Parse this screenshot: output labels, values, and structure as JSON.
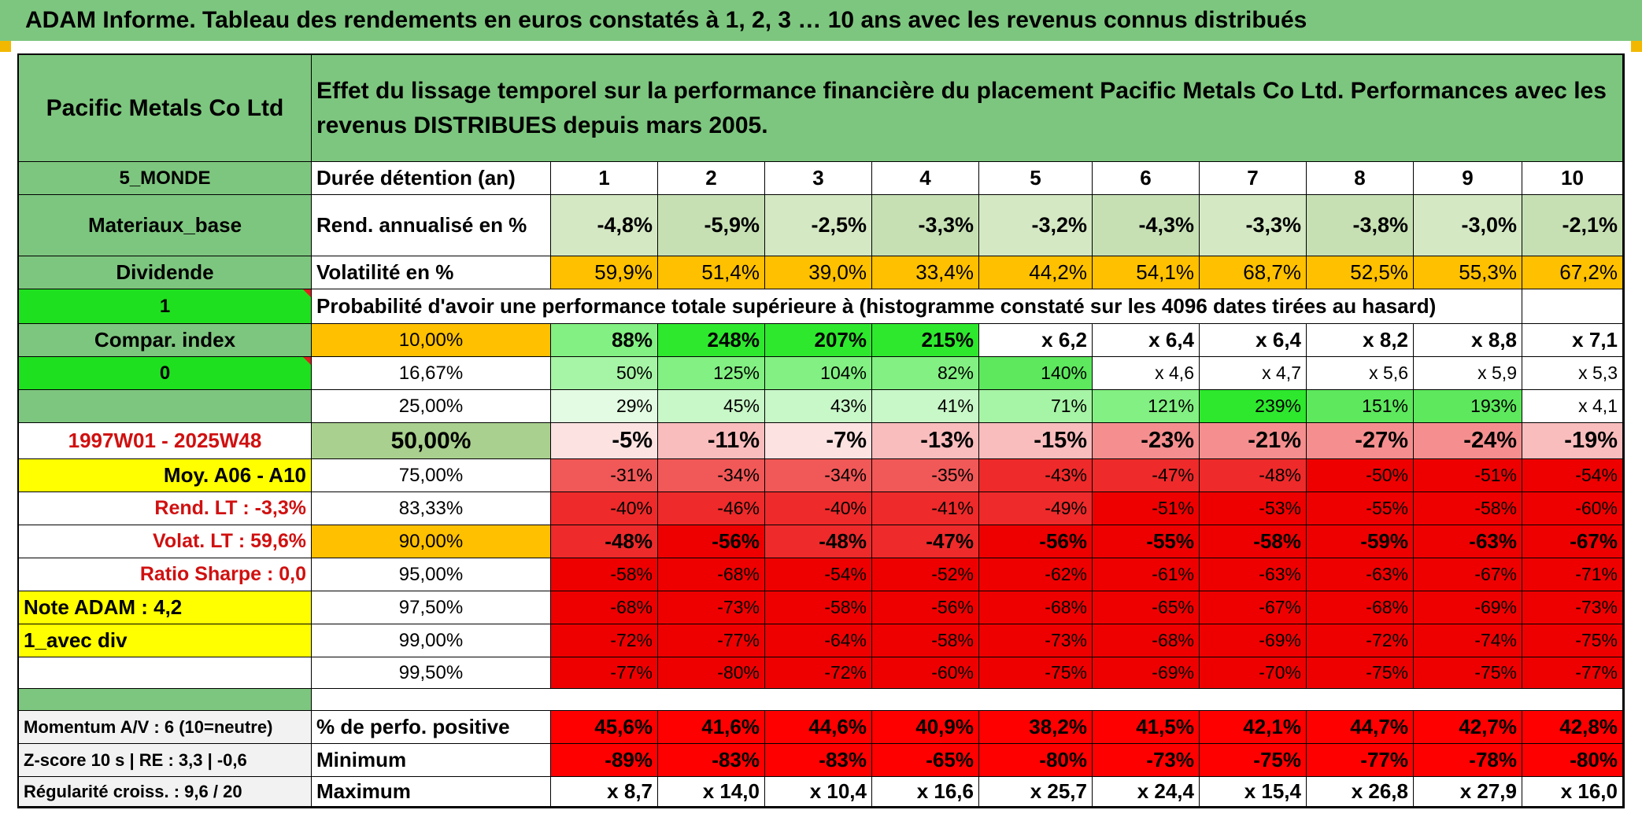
{
  "title": "ADAM Informe. Tableau des rendements en euros constatés à 1, 2, 3 … 10 ans avec les revenus connus distribués",
  "header": {
    "company": "Pacific Metals Co Ltd",
    "description": "Effet du lissage temporel sur la performance financière du placement Pacific Metals Co Ltd. Performances avec les revenus DISTRIBUES depuis mars 2005."
  },
  "left_panel": [
    "5_MONDE",
    "Materiaux_base",
    "Dividende",
    "1",
    "Compar. index",
    "0",
    "",
    "1997W01 - 2025W48",
    "Moy. A06 - A10",
    "Rend. LT :   -3,3%",
    "Volat. LT :   59,6%",
    "Ratio Sharpe :    0,0",
    "Note ADAM : 4,2",
    "1_avec div",
    ""
  ],
  "durations": {
    "label": "Durée détention (an)",
    "values": [
      "1",
      "2",
      "3",
      "4",
      "5",
      "6",
      "7",
      "8",
      "9",
      "10"
    ]
  },
  "rend": {
    "label": "Rend. annualisé en %",
    "values": [
      "-4,8%",
      "-5,9%",
      "-2,5%",
      "-3,3%",
      "-3,2%",
      "-4,3%",
      "-3,3%",
      "-3,8%",
      "-3,0%",
      "-2,1%"
    ]
  },
  "vol": {
    "label": "Volatilité en %",
    "values": [
      "59,9%",
      "51,4%",
      "39,0%",
      "33,4%",
      "44,2%",
      "54,1%",
      "68,7%",
      "52,5%",
      "55,3%",
      "67,2%"
    ]
  },
  "prob_header": "Probabilité d'avoir une performance totale supérieure à (histogramme constaté sur les 4096 dates tirées au hasard)",
  "percentiles": [
    {
      "label": "10,00%",
      "values": [
        "88%",
        "248%",
        "207%",
        "215%",
        "x 6,2",
        "x 6,4",
        "x 6,4",
        "x 8,2",
        "x 8,8",
        "x 7,1"
      ]
    },
    {
      "label": "16,67%",
      "values": [
        "50%",
        "125%",
        "104%",
        "82%",
        "140%",
        "x 4,6",
        "x 4,7",
        "x 5,6",
        "x 5,9",
        "x 5,3"
      ]
    },
    {
      "label": "25,00%",
      "values": [
        "29%",
        "45%",
        "43%",
        "41%",
        "71%",
        "121%",
        "239%",
        "151%",
        "193%",
        "x 4,1"
      ]
    },
    {
      "label": "50,00%",
      "values": [
        "-5%",
        "-11%",
        "-7%",
        "-13%",
        "-15%",
        "-23%",
        "-21%",
        "-27%",
        "-24%",
        "-19%"
      ]
    },
    {
      "label": "75,00%",
      "values": [
        "-31%",
        "-34%",
        "-34%",
        "-35%",
        "-43%",
        "-47%",
        "-48%",
        "-50%",
        "-51%",
        "-54%"
      ]
    },
    {
      "label": "83,33%",
      "values": [
        "-40%",
        "-46%",
        "-40%",
        "-41%",
        "-49%",
        "-51%",
        "-53%",
        "-55%",
        "-58%",
        "-60%"
      ]
    },
    {
      "label": "90,00%",
      "values": [
        "-48%",
        "-56%",
        "-48%",
        "-47%",
        "-56%",
        "-55%",
        "-58%",
        "-59%",
        "-63%",
        "-67%"
      ]
    },
    {
      "label": "95,00%",
      "values": [
        "-58%",
        "-68%",
        "-54%",
        "-52%",
        "-62%",
        "-61%",
        "-63%",
        "-63%",
        "-67%",
        "-71%"
      ]
    },
    {
      "label": "97,50%",
      "values": [
        "-68%",
        "-73%",
        "-58%",
        "-56%",
        "-68%",
        "-65%",
        "-67%",
        "-68%",
        "-69%",
        "-73%"
      ]
    },
    {
      "label": "99,00%",
      "values": [
        "-72%",
        "-77%",
        "-64%",
        "-58%",
        "-73%",
        "-68%",
        "-69%",
        "-72%",
        "-74%",
        "-75%"
      ]
    },
    {
      "label": "99,50%",
      "values": [
        "-77%",
        "-80%",
        "-72%",
        "-60%",
        "-75%",
        "-69%",
        "-70%",
        "-75%",
        "-75%",
        "-77%"
      ]
    }
  ],
  "bottom": [
    {
      "side": "Momentum A/V : 6 (10=neutre)",
      "label": "% de perfo. positive",
      "values": [
        "45,6%",
        "41,6%",
        "44,6%",
        "40,9%",
        "38,2%",
        "41,5%",
        "42,1%",
        "44,7%",
        "42,7%",
        "42,8%"
      ]
    },
    {
      "side": "Z-score 10 s | RE : 3,3 | -0,6",
      "label": "Minimum",
      "values": [
        "-89%",
        "-83%",
        "-83%",
        "-65%",
        "-80%",
        "-73%",
        "-75%",
        "-77%",
        "-78%",
        "-80%"
      ]
    },
    {
      "side": "Régularité croiss. : 9,6 / 20",
      "label": "Maximum",
      "values": [
        "x 8,7",
        "x 14,0",
        "x 10,4",
        "x 16,6",
        "x 25,7",
        "x 24,4",
        "x 15,4",
        "x 26,8",
        "x 27,9",
        "x 16,0"
      ]
    }
  ],
  "colors": {
    "header_green": "#7dc67f",
    "bright_green": "#1fe01f",
    "yellow": "#ffff00",
    "orange": "#ffc000",
    "light_green": "#c6e0b4",
    "mid_green": "#a9d08e",
    "red": "#ff0000",
    "pos_scale": [
      "#ffffff",
      "#e2fbe2",
      "#c8f7c8",
      "#a6f4a6",
      "#82f082",
      "#5de85d",
      "#2ee82e"
    ],
    "neg_scale": [
      "#ffffff",
      "#fde2e2",
      "#f9bdbd",
      "#f58f8f",
      "#f15858",
      "#ee2a2a",
      "#ee0000"
    ]
  }
}
